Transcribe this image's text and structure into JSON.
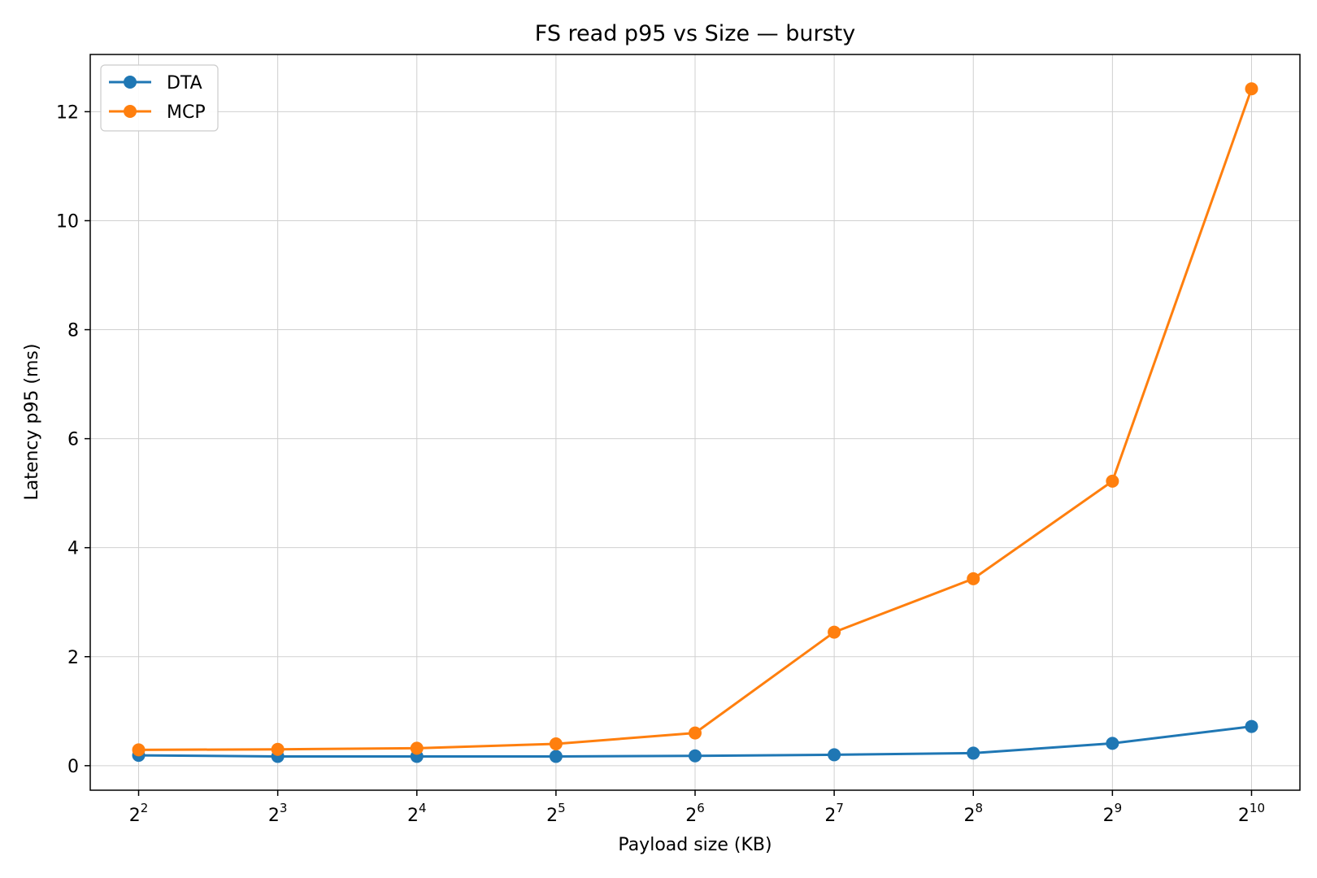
{
  "chart_data": {
    "type": "line",
    "title": "FS read p95 vs Size — bursty",
    "xlabel": "Payload size (KB)",
    "ylabel": "Latency p95 (ms)",
    "x_scale": "log2",
    "x": [
      4,
      8,
      16,
      32,
      64,
      128,
      256,
      512,
      1024
    ],
    "x_tick_labels": [
      {
        "base": "2",
        "exp": "2"
      },
      {
        "base": "2",
        "exp": "3"
      },
      {
        "base": "2",
        "exp": "4"
      },
      {
        "base": "2",
        "exp": "5"
      },
      {
        "base": "2",
        "exp": "6"
      },
      {
        "base": "2",
        "exp": "7"
      },
      {
        "base": "2",
        "exp": "8"
      },
      {
        "base": "2",
        "exp": "9"
      },
      {
        "base": "2",
        "exp": "10"
      }
    ],
    "ylim": [
      -0.45,
      13.05
    ],
    "y_ticks": [
      0,
      2,
      4,
      6,
      8,
      10,
      12
    ],
    "y_tick_labels": [
      "0",
      "2",
      "4",
      "6",
      "8",
      "10",
      "12"
    ],
    "grid": true,
    "legend_position": "top-left",
    "series": [
      {
        "name": "DTA",
        "color": "#1f77b4",
        "values": [
          0.19,
          0.17,
          0.17,
          0.17,
          0.18,
          0.2,
          0.23,
          0.41,
          0.72
        ]
      },
      {
        "name": "MCP",
        "color": "#ff7f0e",
        "values": [
          0.29,
          0.3,
          0.32,
          0.4,
          0.6,
          2.45,
          3.43,
          5.22,
          12.42
        ]
      }
    ]
  }
}
